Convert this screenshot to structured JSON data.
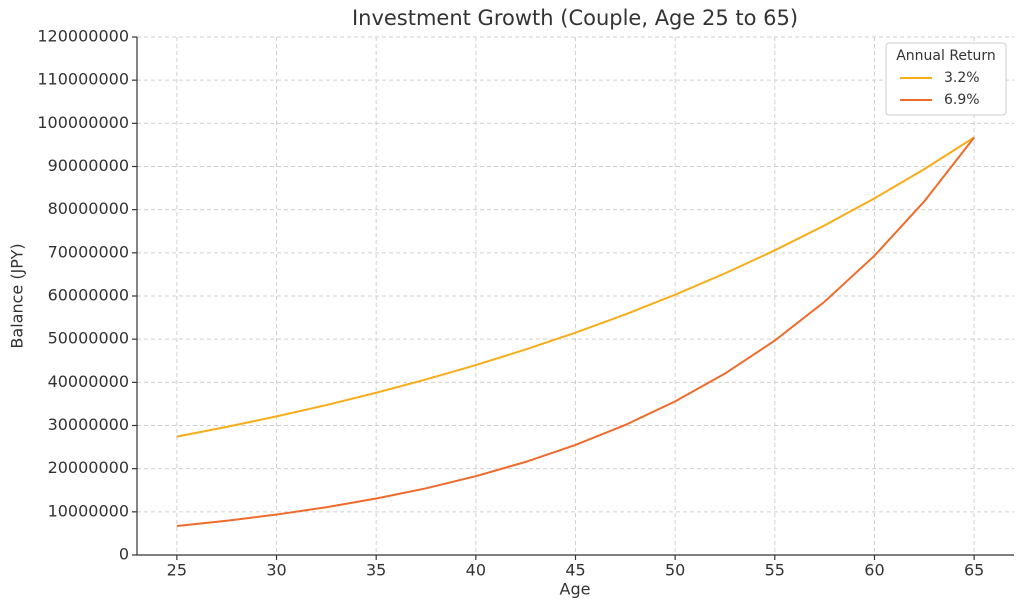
{
  "chart_data": {
    "type": "line",
    "title": "Investment Growth (Couple, Age 25 to 65)",
    "x_label": "Age",
    "y_label": "Balance (JPY)",
    "x": [
      25,
      27.5,
      30,
      32.5,
      35,
      37.5,
      40,
      42.5,
      45,
      47.5,
      50,
      52.5,
      55,
      57.5,
      60,
      62.5,
      65
    ],
    "series": [
      {
        "name": "3.2%",
        "color": "#f7ad19",
        "values": [
          27430000,
          29680000,
          32110000,
          34740000,
          37590000,
          40670000,
          44000000,
          47610000,
          51510000,
          55730000,
          60300000,
          65240000,
          70580000,
          76360000,
          82620000,
          89390000,
          96720000
        ]
      },
      {
        "name": "6.9%",
        "color": "#ee6b2c",
        "values": [
          6710000,
          7930000,
          9370000,
          11070000,
          13080000,
          15450000,
          18260000,
          21570000,
          25490000,
          30120000,
          35580000,
          42040000,
          49670000,
          58690000,
          69340000,
          81930000,
          96720000
        ]
      }
    ],
    "legend_title": "Annual Return",
    "legend": "upper right",
    "xlim": [
      23,
      67
    ],
    "xticks": [
      25,
      30,
      35,
      40,
      45,
      50,
      55,
      60,
      65
    ],
    "ylim": [
      0,
      120000000
    ],
    "yticks": [
      0,
      10000000,
      20000000,
      30000000,
      40000000,
      50000000,
      60000000,
      70000000,
      80000000,
      90000000,
      100000000,
      110000000,
      120000000
    ],
    "grid": true
  }
}
